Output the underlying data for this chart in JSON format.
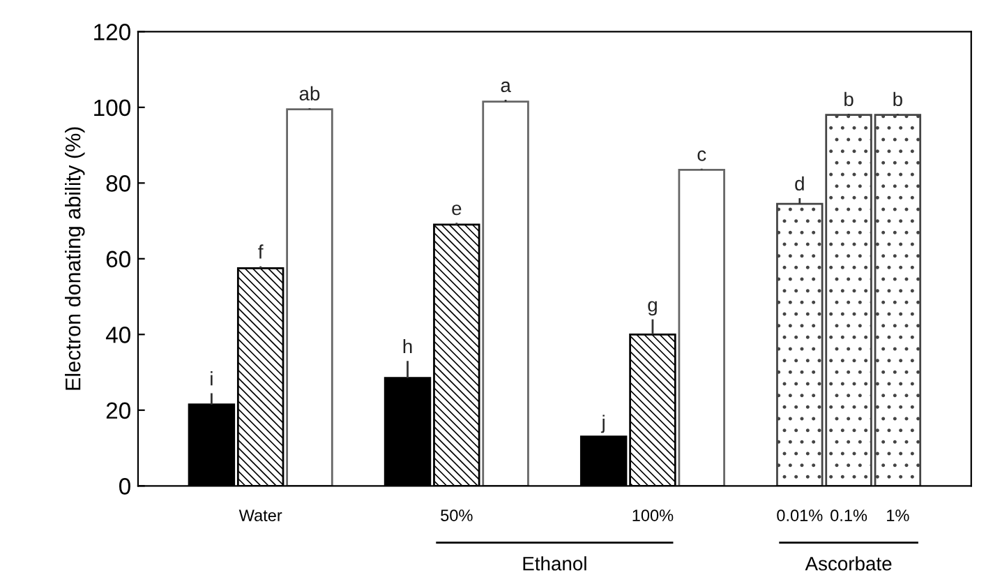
{
  "chart_data": {
    "type": "bar",
    "ylabel": "Electron donating ability (%)",
    "categories": [
      null,
      "Water",
      null,
      null,
      null,
      "50%",
      null,
      null,
      null,
      "100%",
      null,
      null,
      "0.01%",
      "0.1%",
      "1%"
    ],
    "series": [
      {
        "color": "#000000",
        "values": [
          21.5,
          null,
          null,
          null,
          28.5,
          null,
          null,
          null,
          13,
          null,
          null,
          null,
          null,
          null,
          null
        ],
        "errors": [
          3,
          null,
          null,
          null,
          4.5,
          null,
          null,
          null,
          null,
          null,
          null,
          null,
          null,
          null,
          null
        ],
        "value_labels": [
          "i",
          null,
          null,
          null,
          "h",
          null,
          null,
          null,
          "j",
          null,
          null,
          null,
          null,
          null,
          null
        ]
      },
      {
        "color": "#000000",
        "values": [
          null,
          57.5,
          null,
          null,
          null,
          69,
          null,
          null,
          null,
          40,
          null,
          null,
          null,
          null,
          null
        ],
        "errors": [
          null,
          0.5,
          null,
          null,
          null,
          0.5,
          null,
          null,
          null,
          4,
          null,
          null,
          null,
          null,
          null
        ],
        "value_labels": [
          null,
          "f",
          null,
          null,
          null,
          "e",
          null,
          null,
          null,
          "g",
          null,
          null,
          null,
          null,
          null
        ]
      },
      {
        "color": "#ffffff",
        "values": [
          null,
          null,
          99.5,
          null,
          null,
          null,
          101.5,
          null,
          null,
          null,
          83.5,
          null,
          null,
          null,
          null
        ],
        "errors": [
          null,
          null,
          0.3,
          null,
          null,
          null,
          0.5,
          null,
          null,
          null,
          0.3,
          null,
          null,
          null,
          null
        ],
        "value_labels": [
          null,
          null,
          "ab",
          null,
          null,
          null,
          "a",
          null,
          null,
          null,
          "c",
          null,
          null,
          null,
          null
        ]
      },
      {
        "color": "#444444",
        "values": [
          null,
          null,
          null,
          null,
          null,
          null,
          null,
          null,
          null,
          null,
          null,
          null,
          74.5,
          98,
          98
        ],
        "errors": [
          null,
          null,
          null,
          null,
          null,
          null,
          null,
          null,
          null,
          null,
          null,
          null,
          1.5,
          0.3,
          0.3
        ],
        "value_labels": [
          null,
          null,
          null,
          null,
          null,
          null,
          null,
          null,
          null,
          null,
          null,
          null,
          "d",
          "b",
          "b"
        ]
      }
    ],
    "ylim": [
      0,
      120
    ],
    "yticks": [
      0,
      20,
      40,
      60,
      80,
      100,
      120
    ],
    "annotations": [
      "Ethanol",
      "Ascorbate"
    ],
    "grid": false,
    "legend": false
  }
}
